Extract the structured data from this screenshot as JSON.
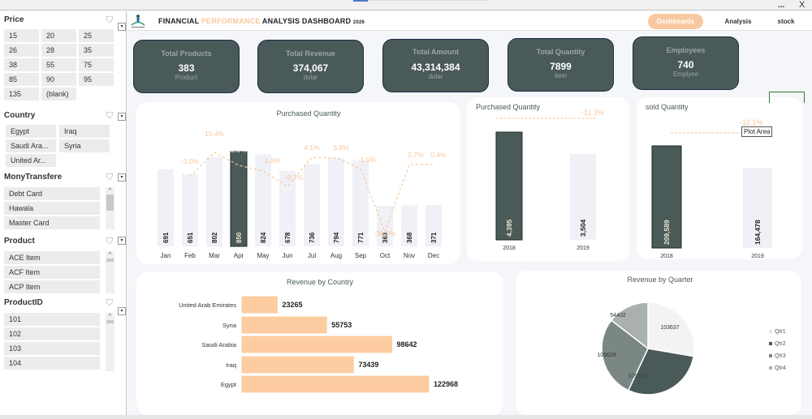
{
  "window": {
    "more_label": "...",
    "close_label": "X"
  },
  "sidebar": {
    "price": {
      "title": "Price",
      "items": [
        "15",
        "20",
        "25",
        "26",
        "28",
        "35",
        "38",
        "55",
        "75",
        "85",
        "90",
        "95",
        "135",
        "(blank)"
      ]
    },
    "country": {
      "title": "Country",
      "items": [
        "Egypt",
        "Iraq",
        "Saudi Ara...",
        "Syria",
        "United Ar..."
      ]
    },
    "money_transfer": {
      "title": "MonyTransfere",
      "items": [
        "Debt Card",
        "Hawala",
        "Master Card"
      ]
    },
    "product": {
      "title": "Product",
      "items": [
        "ACE Item",
        "ACF Item",
        "ACP Item"
      ]
    },
    "product_id": {
      "title": "ProductID",
      "items": [
        "101",
        "102",
        "103",
        "104"
      ]
    },
    "icons": {
      "filter": "filter-clear-icon",
      "dropdown": "dropdown-arrow-icon",
      "up": "^",
      "down": "v"
    }
  },
  "header": {
    "title_part1": "FINANCIAL ",
    "title_accent": "PERFORMANCE",
    "title_part2": " ANALYSIS DASHBOARD",
    "title_year": "2026",
    "nav": [
      {
        "label": "Dashboards",
        "active": true
      },
      {
        "label": "Analysis",
        "active": false
      },
      {
        "label": "stock",
        "active": false
      }
    ]
  },
  "kpis": [
    {
      "label": "Total Products",
      "value": "383",
      "unit": "Product"
    },
    {
      "label": "Total Revenue",
      "value": "374,067",
      "unit": "dolar"
    },
    {
      "label": "Total Amount",
      "value": "43,314,384",
      "unit": "dolar"
    },
    {
      "label": "Total Quantity",
      "value": "7899",
      "unit": "item"
    },
    {
      "label": "Employees",
      "value": "740",
      "unit": "Emplyee"
    }
  ],
  "colors": {
    "dark": "#4a5a58",
    "light_bar": "#f0f1f7",
    "accent": "#f8c79b",
    "bar_orange": "#fdcda1"
  },
  "tooltip": "Plot Area",
  "chart_data": [
    {
      "type": "bar",
      "title": "Purchased Quantity",
      "categories": [
        "Jan",
        "Feb",
        "Mar",
        "Apr",
        "May",
        "Jun",
        "Jul",
        "Aug",
        "Sep",
        "Oct",
        "Nov",
        "Dec"
      ],
      "values": [
        691,
        651,
        802,
        850,
        824,
        678,
        736,
        794,
        771,
        363,
        368,
        371
      ],
      "highlight": "Apr",
      "line_series": {
        "name": "change",
        "labels": [
          "",
          "-3.0%",
          "10.4%",
          "2.9%",
          "-1.6%",
          "-9.7%",
          "4.1%",
          "3.8%",
          "-1.5%",
          "-36.0%",
          "0.7%",
          "0.4%"
        ]
      },
      "xlabel": "",
      "ylabel": ""
    },
    {
      "type": "bar",
      "title": "Purchased Quantity",
      "categories": [
        "2018",
        "2019"
      ],
      "values": [
        4395,
        3504
      ],
      "value_labels": [
        "4,395",
        "3,504"
      ],
      "change_label": "-11.3%"
    },
    {
      "type": "bar",
      "title": "sold Quantity",
      "categories": [
        "2018",
        "2019"
      ],
      "values": [
        209589,
        164478
      ],
      "value_labels": [
        "209,589",
        "164,478"
      ],
      "change_label": "-12.1%"
    },
    {
      "type": "bar",
      "orientation": "horizontal",
      "title": "Revenue by Country",
      "categories": [
        "United Arab Emirates",
        "Syria",
        "Saudi Arabia",
        "Iraq",
        "Egypt"
      ],
      "values": [
        23265,
        55753,
        98642,
        73439,
        122968
      ]
    },
    {
      "type": "pie",
      "title": "Revenue by Quarter",
      "categories": [
        "Qtr1",
        "Qtr2",
        "Qtr3",
        "Qtr4"
      ],
      "values": [
        103637,
        109399,
        106629,
        54402
      ],
      "colors": [
        "#f2f3f2",
        "#4a5a58",
        "#7a8784",
        "#a9b0ae"
      ],
      "legend": "right"
    }
  ]
}
